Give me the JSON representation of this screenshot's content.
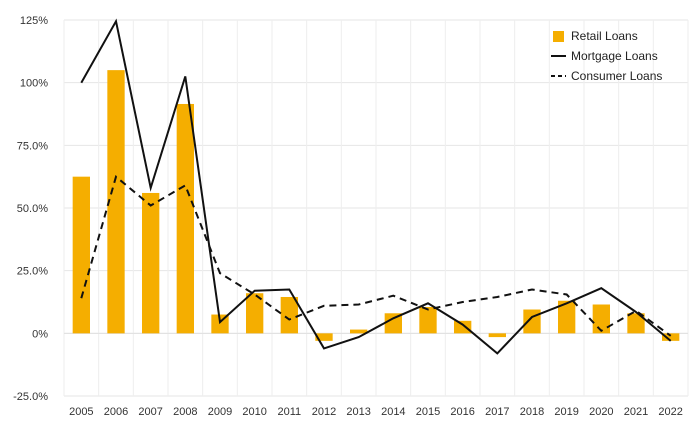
{
  "chart_data": {
    "type": "bar",
    "title": "",
    "xlabel": "",
    "ylabel": "",
    "ylim": [
      -25,
      125
    ],
    "y_ticks": [
      125,
      100,
      75,
      50,
      25,
      0,
      -25
    ],
    "y_tick_labels": [
      "125%",
      "100%",
      "75.0%",
      "50.0%",
      "25.0%",
      "0%",
      "-25.0%"
    ],
    "categories": [
      "2005",
      "2006",
      "2007",
      "2008",
      "2009",
      "2010",
      "2011",
      "2012",
      "2013",
      "2014",
      "2015",
      "2016",
      "2017",
      "2018",
      "2019",
      "2020",
      "2021",
      "2022"
    ],
    "grid": true,
    "legend_position": "top-right",
    "series": [
      {
        "name": "Retail Loans",
        "type": "bar",
        "color": "#f5ae00",
        "values": [
          62.5,
          105,
          56,
          91.5,
          7.5,
          16,
          14.5,
          -3,
          1.5,
          8,
          10.5,
          5,
          -1.5,
          9.5,
          13,
          11.5,
          8,
          -3
        ]
      },
      {
        "name": "Mortgage Loans",
        "type": "line",
        "style": "solid",
        "color": "#111111",
        "values": [
          100,
          124.5,
          58,
          102.5,
          4.5,
          17,
          17.5,
          -6,
          -1.5,
          6,
          12,
          3.5,
          -8,
          6.5,
          12,
          18,
          8.5,
          -3
        ]
      },
      {
        "name": "Consumer Loans",
        "type": "line",
        "style": "dashed",
        "color": "#111111",
        "values": [
          14,
          62.5,
          51,
          59,
          24,
          15.5,
          5.5,
          11,
          11.5,
          15,
          9.5,
          12.5,
          14.5,
          17.5,
          15.5,
          1,
          9,
          -1
        ]
      }
    ]
  }
}
